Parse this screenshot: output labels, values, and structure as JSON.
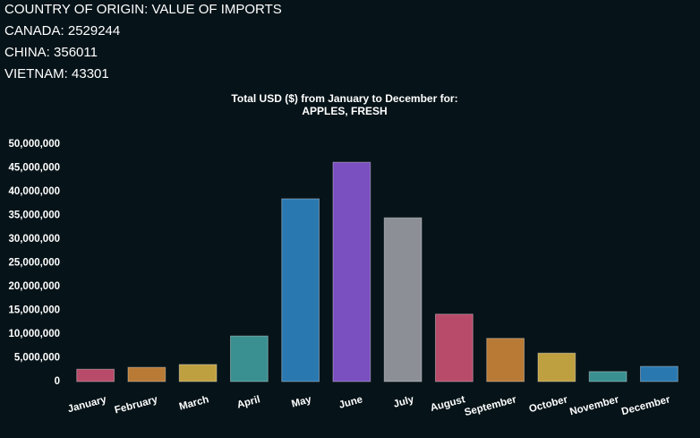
{
  "header": {
    "title": "COUNTRY OF ORIGIN: VALUE OF IMPORTS",
    "rows": [
      "CANADA: 2529244",
      "CHINA: 356011",
      "VIETNAM: 43301"
    ]
  },
  "chart_data": {
    "type": "bar",
    "title": [
      "Total USD ($) from January to December for:",
      "APPLES, FRESH"
    ],
    "categories": [
      "January",
      "February",
      "March",
      "April",
      "May",
      "June",
      "July",
      "August",
      "September",
      "October",
      "November",
      "December"
    ],
    "values": [
      2600000,
      3000000,
      3600000,
      9600000,
      38500000,
      46200000,
      34500000,
      14200000,
      9100000,
      6000000,
      2100000,
      3200000
    ],
    "colors": [
      "#b84a6a",
      "#b87a35",
      "#bfa040",
      "#3a9090",
      "#2a78b0",
      "#7a4fc0",
      "#8c9096",
      "#b84a6a",
      "#b87a35",
      "#bfa040",
      "#3a9090",
      "#2a78b0"
    ],
    "ylim": [
      0,
      50000000
    ],
    "yticks": [
      0,
      {
        "value": 5000000,
        "label": "5,000,000"
      },
      {
        "value": 10000000,
        "label": "10,000,000"
      },
      {
        "value": 15000000,
        "label": "15,000,000"
      },
      {
        "value": 20000000,
        "label": "20,000,000"
      },
      {
        "value": 25000000,
        "label": "25,000,000"
      },
      {
        "value": 30000000,
        "label": "30,000,000"
      },
      {
        "value": 35000000,
        "label": "35,000,000"
      },
      {
        "value": 40000000,
        "label": "40,000,000"
      },
      {
        "value": 45000000,
        "label": "45,000,000"
      },
      {
        "value": 50000000,
        "label": "50,000,000"
      }
    ],
    "grid": false
  }
}
